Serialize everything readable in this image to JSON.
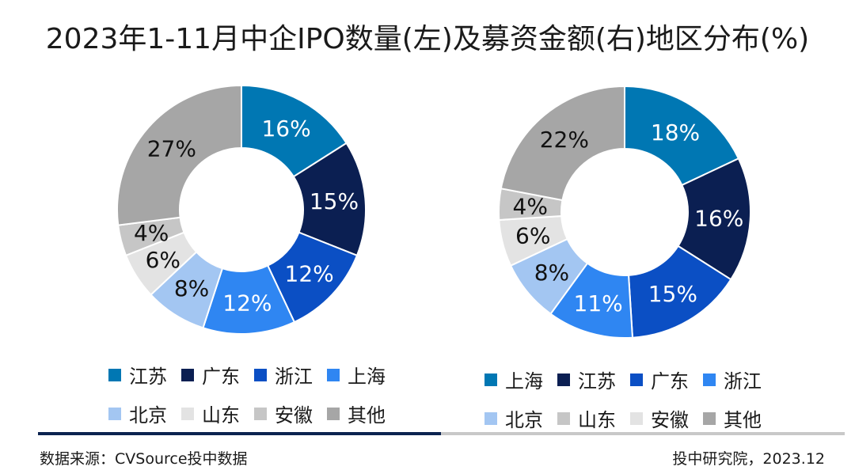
{
  "title": "2023年1-11月中企IPO数量(左)及募资金额(右)地区分布(%)",
  "chart_data": [
    {
      "type": "pie",
      "subtype": "donut",
      "categories": [
        "江苏",
        "广东",
        "浙江",
        "上海",
        "北京",
        "山东",
        "安徽",
        "其他"
      ],
      "values": [
        16,
        15,
        12,
        12,
        8,
        6,
        4,
        27
      ],
      "labels": [
        "16%",
        "15%",
        "12%",
        "12%",
        "8%",
        "6%",
        "4%",
        "27%"
      ],
      "colors": [
        "#0077b3",
        "#0b1f52",
        "#0b4fc4",
        "#2f86f2",
        "#a3c6f2",
        "#e3e3e3",
        "#c6c6c6",
        "#a6a6a6"
      ],
      "label_colors": [
        "#ffffff",
        "#ffffff",
        "#ffffff",
        "#ffffff",
        "#111111",
        "#111111",
        "#111111",
        "#111111"
      ],
      "legend_position": "bottom",
      "legend_order": [
        0,
        1,
        2,
        3,
        4,
        5,
        6,
        7
      ]
    },
    {
      "type": "pie",
      "subtype": "donut",
      "categories": [
        "上海",
        "江苏",
        "广东",
        "浙江",
        "北京",
        "安徽",
        "山东",
        "其他"
      ],
      "values": [
        18,
        16,
        15,
        11,
        8,
        6,
        4,
        22
      ],
      "labels": [
        "18%",
        "16%",
        "15%",
        "11%",
        "8%",
        "6%",
        "4%",
        "22%"
      ],
      "colors": [
        "#0077b3",
        "#0b1f52",
        "#0b4fc4",
        "#2f86f2",
        "#a3c6f2",
        "#e3e3e3",
        "#c6c6c6",
        "#a6a6a6"
      ],
      "label_colors": [
        "#ffffff",
        "#ffffff",
        "#ffffff",
        "#ffffff",
        "#111111",
        "#111111",
        "#111111",
        "#111111"
      ],
      "legend_position": "bottom",
      "legend_order": [
        0,
        1,
        2,
        3,
        4,
        6,
        5,
        7
      ]
    }
  ],
  "footer": {
    "source": "数据来源：CVSource投中数据",
    "credit": "投中研究院，2023.12"
  },
  "colors": {
    "divider_dark": "#0b2350",
    "divider_light": "#c8c8c8"
  }
}
